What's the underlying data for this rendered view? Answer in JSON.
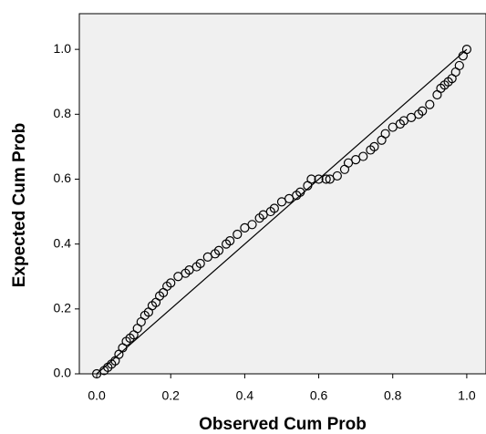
{
  "chart_data": {
    "type": "scatter",
    "xlabel": "Observed Cum Prob",
    "ylabel": "Expected Cum Prob",
    "x": [
      0,
      0.02,
      0.03,
      0.04,
      0.05,
      0.06,
      0.07,
      0.08,
      0.09,
      0.1,
      0.11,
      0.12,
      0.13,
      0.14,
      0.15,
      0.16,
      0.17,
      0.18,
      0.19,
      0.2,
      0.22,
      0.24,
      0.25,
      0.27,
      0.28,
      0.3,
      0.32,
      0.33,
      0.35,
      0.36,
      0.38,
      0.4,
      0.42,
      0.44,
      0.45,
      0.47,
      0.48,
      0.5,
      0.52,
      0.54,
      0.55,
      0.57,
      0.58,
      0.6,
      0.62,
      0.63,
      0.65,
      0.67,
      0.68,
      0.7,
      0.72,
      0.74,
      0.75,
      0.77,
      0.78,
      0.8,
      0.82,
      0.83,
      0.85,
      0.87,
      0.88,
      0.9,
      0.92,
      0.93,
      0.94,
      0.95,
      0.96,
      0.97,
      0.98,
      0.99,
      1.0
    ],
    "series": [
      {
        "color": "#000000",
        "values": [
          0,
          0.01,
          0.02,
          0.03,
          0.04,
          0.06,
          0.08,
          0.1,
          0.11,
          0.12,
          0.14,
          0.16,
          0.18,
          0.19,
          0.21,
          0.22,
          0.24,
          0.25,
          0.27,
          0.28,
          0.3,
          0.31,
          0.32,
          0.33,
          0.34,
          0.36,
          0.37,
          0.38,
          0.4,
          0.41,
          0.43,
          0.45,
          0.46,
          0.48,
          0.49,
          0.5,
          0.51,
          0.53,
          0.54,
          0.55,
          0.56,
          0.58,
          0.6,
          0.6,
          0.6,
          0.6,
          0.61,
          0.63,
          0.65,
          0.66,
          0.67,
          0.69,
          0.7,
          0.72,
          0.74,
          0.76,
          0.77,
          0.78,
          0.79,
          0.8,
          0.81,
          0.83,
          0.86,
          0.88,
          0.89,
          0.9,
          0.91,
          0.93,
          0.95,
          0.98,
          1.0
        ]
      }
    ],
    "reference_line": {
      "x": [
        0,
        1
      ],
      "y": [
        0,
        1
      ]
    },
    "xlim": [
      -0.047,
      1.052
    ],
    "ylim": [
      0,
      1.11
    ],
    "xticks": [
      {
        "value": 0,
        "label": "0.0"
      },
      0.2,
      0.4,
      0.6,
      0.8,
      {
        "value": 1,
        "label": "1.0"
      }
    ],
    "yticks": [
      {
        "value": 0,
        "label": "0.0"
      },
      0.2,
      0.4,
      0.6,
      0.8,
      {
        "value": 1,
        "label": "1.0"
      }
    ]
  }
}
